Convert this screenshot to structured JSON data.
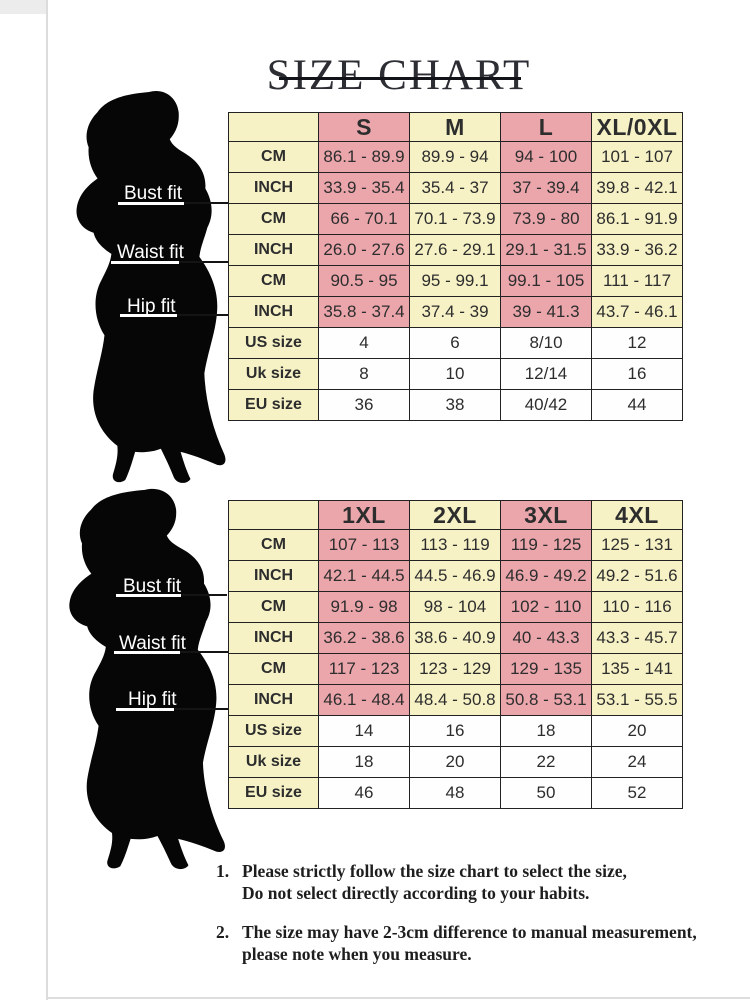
{
  "title": "SIZE CHART",
  "fit_labels": [
    "Bust fit",
    "Waist fit",
    "Hip fit"
  ],
  "colors": {
    "pink": "#eba6ac",
    "cream": "#f6f2c6",
    "cell_white": "#fefefe",
    "border": "#222222",
    "silhouette": "#060606",
    "title": "#2c2e34"
  },
  "tables": [
    {
      "name": "regular-sizes",
      "sizes": [
        "S",
        "M",
        "L",
        "XL/0XL"
      ],
      "rows": [
        {
          "label": "CM",
          "group": "bust",
          "band": "tint",
          "values": [
            "86.1 - 89.9",
            "89.9 - 94",
            "94 - 100",
            "101 - 107"
          ]
        },
        {
          "label": "INCH",
          "group": "bust",
          "band": "tint",
          "values": [
            "33.9 - 35.4",
            "35.4 - 37",
            "37 - 39.4",
            "39.8 - 42.1"
          ]
        },
        {
          "label": "CM",
          "group": "waist",
          "band": "tint",
          "values": [
            "66 - 70.1",
            "70.1 - 73.9",
            "73.9 - 80",
            "86.1 - 91.9"
          ]
        },
        {
          "label": "INCH",
          "group": "waist",
          "band": "tint",
          "values": [
            "26.0 - 27.6",
            "27.6 - 29.1",
            "29.1 - 31.5",
            "33.9 - 36.2"
          ]
        },
        {
          "label": "CM",
          "group": "hip",
          "band": "tint",
          "values": [
            "90.5 - 95",
            "95 - 99.1",
            "99.1 - 105",
            "111 - 117"
          ]
        },
        {
          "label": "INCH",
          "group": "hip",
          "band": "tint",
          "values": [
            "35.8 - 37.4",
            "37.4 - 39",
            "39 - 41.3",
            "43.7 - 46.1"
          ]
        },
        {
          "label": "US size",
          "group": "size",
          "band": "plain",
          "values": [
            "4",
            "6",
            "8/10",
            "12"
          ]
        },
        {
          "label": "Uk size",
          "group": "size",
          "band": "plain",
          "values": [
            "8",
            "10",
            "12/14",
            "16"
          ]
        },
        {
          "label": "EU size",
          "group": "size",
          "band": "plain",
          "values": [
            "36",
            "38",
            "40/42",
            "44"
          ]
        }
      ]
    },
    {
      "name": "plus-sizes",
      "sizes": [
        "1XL",
        "2XL",
        "3XL",
        "4XL"
      ],
      "rows": [
        {
          "label": "CM",
          "group": "bust",
          "band": "tint",
          "values": [
            "107 - 113",
            "113 - 119",
            "119 - 125",
            "125 - 131"
          ]
        },
        {
          "label": "INCH",
          "group": "bust",
          "band": "tint",
          "values": [
            "42.1 - 44.5",
            "44.5 - 46.9",
            "46.9 - 49.2",
            "49.2 - 51.6"
          ]
        },
        {
          "label": "CM",
          "group": "waist",
          "band": "tint",
          "values": [
            "91.9 - 98",
            "98 - 104",
            "102 - 110",
            "110 - 116"
          ]
        },
        {
          "label": "INCH",
          "group": "waist",
          "band": "tint",
          "values": [
            "36.2 - 38.6",
            "38.6 - 40.9",
            "40 - 43.3",
            "43.3 - 45.7"
          ]
        },
        {
          "label": "CM",
          "group": "hip",
          "band": "tint",
          "values": [
            "117 - 123",
            "123 - 129",
            "129 - 135",
            "135 - 141"
          ]
        },
        {
          "label": "INCH",
          "group": "hip",
          "band": "tint",
          "values": [
            "46.1 - 48.4",
            "48.4 - 50.8",
            "50.8 - 53.1",
            "53.1 - 55.5"
          ]
        },
        {
          "label": "US size",
          "group": "size",
          "band": "plain",
          "values": [
            "14",
            "16",
            "18",
            "20"
          ]
        },
        {
          "label": "Uk size",
          "group": "size",
          "band": "plain",
          "values": [
            "18",
            "20",
            "22",
            "24"
          ]
        },
        {
          "label": "EU size",
          "group": "size",
          "band": "plain",
          "values": [
            "46",
            "48",
            "50",
            "52"
          ]
        }
      ]
    }
  ],
  "notes": [
    {
      "num": "1.",
      "lines": [
        "Please strictly follow the size chart to select the size,",
        "Do not select directly according to your habits."
      ]
    },
    {
      "num": "2.",
      "lines": [
        "The size may have 2-3cm difference to manual measurement,",
        "please note when you measure."
      ]
    }
  ]
}
